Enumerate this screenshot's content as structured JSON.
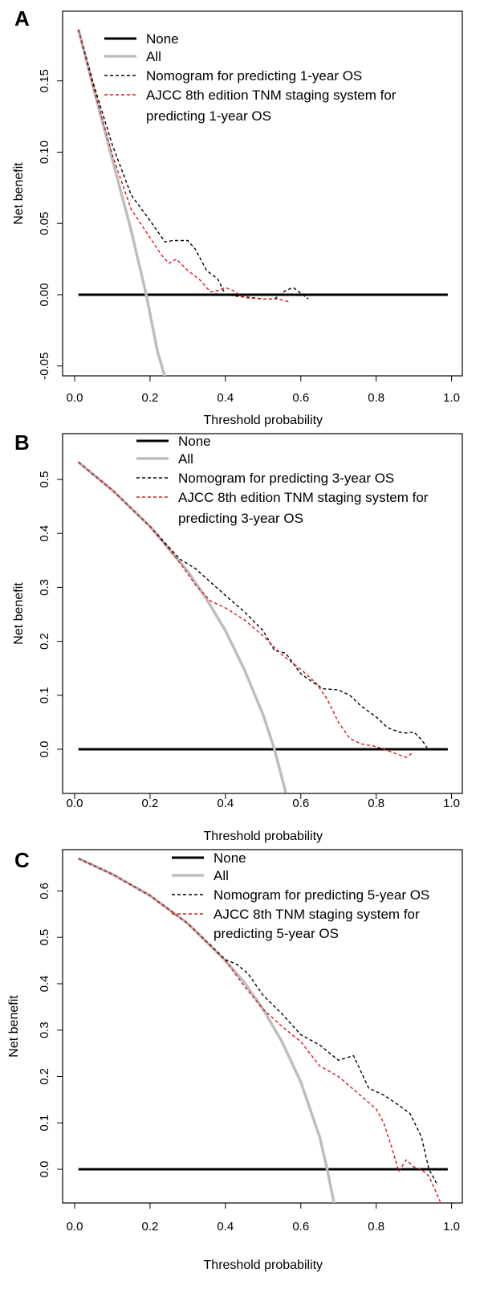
{
  "colors": {
    "none": "#000000",
    "all": "#bdbdbd",
    "nomogram": "#000000",
    "ajcc": "#d7191c"
  },
  "chart_data": [
    {
      "type": "line",
      "panel_label": "A",
      "xlabel": "Threshold probability",
      "ylabel": "Net benefit",
      "xlim": [
        0,
        1
      ],
      "ylim": [
        -0.06,
        0.19
      ],
      "xticks": [
        "0.0",
        "0.2",
        "0.4",
        "0.6",
        "0.8",
        "1.0"
      ],
      "yticks": [
        "-0.05",
        "0.00",
        "0.05",
        "0.10",
        "0.15"
      ],
      "legend_position": "top-right",
      "legend": {
        "none": "None",
        "all": "All",
        "nomogram": "Nomogram for predicting 1-year OS",
        "ajcc_line1": "AJCC 8th edition TNM staging system for",
        "ajcc_line2": "predicting 1-year OS"
      },
      "series": [
        {
          "name": "None",
          "x": [
            0.01,
            0.99
          ],
          "y": [
            0,
            0
          ]
        },
        {
          "name": "All",
          "x": [
            0.01,
            0.05,
            0.1,
            0.15,
            0.19,
            0.22,
            0.24
          ],
          "y": [
            0.186,
            0.145,
            0.095,
            0.045,
            0.0,
            -0.04,
            -0.058
          ]
        },
        {
          "name": "Nomogram for predicting 1-year OS",
          "x": [
            0.01,
            0.05,
            0.1,
            0.15,
            0.2,
            0.24,
            0.26,
            0.3,
            0.32,
            0.35,
            0.38,
            0.4,
            0.43,
            0.47,
            0.5,
            0.53,
            0.56,
            0.58,
            0.6,
            0.62
          ],
          "y": [
            0.186,
            0.148,
            0.105,
            0.07,
            0.052,
            0.037,
            0.038,
            0.038,
            0.032,
            0.017,
            0.011,
            0.0,
            -0.001,
            -0.002,
            -0.003,
            -0.003,
            0.003,
            0.005,
            0.001,
            -0.003
          ]
        },
        {
          "name": "AJCC 8th edition TNM staging system for predicting 1-year OS",
          "x": [
            0.01,
            0.05,
            0.1,
            0.15,
            0.2,
            0.23,
            0.25,
            0.27,
            0.3,
            0.33,
            0.36,
            0.38,
            0.4,
            0.42,
            0.45,
            0.5,
            0.54,
            0.57
          ],
          "y": [
            0.186,
            0.145,
            0.098,
            0.06,
            0.04,
            0.028,
            0.022,
            0.025,
            0.017,
            0.011,
            0.002,
            0.003,
            0.005,
            0.003,
            -0.002,
            -0.003,
            -0.003,
            -0.005
          ]
        }
      ]
    },
    {
      "type": "line",
      "panel_label": "B",
      "xlabel": "Threshold probability",
      "ylabel": "Net benefit",
      "xlim": [
        0,
        1
      ],
      "ylim": [
        -0.08,
        0.56
      ],
      "xticks": [
        "0.0",
        "0.2",
        "0.4",
        "0.6",
        "0.8",
        "1.0"
      ],
      "yticks": [
        "0.0",
        "0.1",
        "0.2",
        "0.3",
        "0.4",
        "0.5"
      ],
      "legend_position": "top-right",
      "legend": {
        "none": "None",
        "all": "All",
        "nomogram": "Nomogram for predicting 3-year OS",
        "ajcc_line1": "AJCC 8th edition TNM staging system for",
        "ajcc_line2": "predicting 3-year OS"
      },
      "series": [
        {
          "name": "None",
          "x": [
            0.01,
            0.99
          ],
          "y": [
            0,
            0
          ]
        },
        {
          "name": "All",
          "x": [
            0.01,
            0.1,
            0.2,
            0.3,
            0.35,
            0.4,
            0.45,
            0.5,
            0.53,
            0.56
          ],
          "y": [
            0.532,
            0.48,
            0.413,
            0.33,
            0.278,
            0.22,
            0.148,
            0.064,
            0.0,
            -0.08
          ]
        },
        {
          "name": "Nomogram for predicting 3-year OS",
          "x": [
            0.01,
            0.1,
            0.2,
            0.28,
            0.32,
            0.36,
            0.4,
            0.45,
            0.5,
            0.53,
            0.56,
            0.6,
            0.63,
            0.66,
            0.7,
            0.73,
            0.76,
            0.8,
            0.83,
            0.86,
            0.88,
            0.9,
            0.92,
            0.935
          ],
          "y": [
            0.532,
            0.48,
            0.413,
            0.352,
            0.335,
            0.31,
            0.285,
            0.255,
            0.22,
            0.183,
            0.178,
            0.14,
            0.125,
            0.112,
            0.11,
            0.1,
            0.08,
            0.06,
            0.04,
            0.032,
            0.03,
            0.032,
            0.018,
            0.003
          ]
        },
        {
          "name": "AJCC 8th edition TNM staging system for predicting 3-year OS",
          "x": [
            0.01,
            0.1,
            0.2,
            0.28,
            0.32,
            0.36,
            0.4,
            0.45,
            0.5,
            0.55,
            0.6,
            0.64,
            0.67,
            0.7,
            0.73,
            0.76,
            0.8,
            0.84,
            0.86,
            0.88,
            0.9
          ],
          "y": [
            0.532,
            0.48,
            0.413,
            0.345,
            0.305,
            0.275,
            0.262,
            0.24,
            0.21,
            0.175,
            0.148,
            0.123,
            0.093,
            0.05,
            0.02,
            0.01,
            0.005,
            -0.005,
            -0.01,
            -0.015,
            -0.005
          ]
        }
      ]
    },
    {
      "type": "line",
      "panel_label": "C",
      "xlabel": "Threshold probability",
      "ylabel": "Net benefit",
      "xlim": [
        0,
        1
      ],
      "ylim": [
        -0.08,
        0.7
      ],
      "xticks": [
        "0.0",
        "0.2",
        "0.4",
        "0.6",
        "0.8",
        "1.0"
      ],
      "yticks": [
        "0.0",
        "0.1",
        "0.2",
        "0.3",
        "0.4",
        "0.5",
        "0.6"
      ],
      "legend_position": "top-right",
      "legend": {
        "none": "None",
        "all": "All",
        "nomogram": "Nomogram for predicting 5-year OS",
        "ajcc_line1": "AJCC 8th TNM staging system for",
        "ajcc_line2": "predicting 5-year OS"
      },
      "series": [
        {
          "name": "None",
          "x": [
            0.01,
            0.99
          ],
          "y": [
            0,
            0
          ]
        },
        {
          "name": "All",
          "x": [
            0.01,
            0.1,
            0.2,
            0.3,
            0.4,
            0.45,
            0.5,
            0.55,
            0.6,
            0.65,
            0.67,
            0.69
          ],
          "y": [
            0.67,
            0.636,
            0.59,
            0.53,
            0.45,
            0.403,
            0.345,
            0.275,
            0.188,
            0.07,
            0.0,
            -0.08
          ]
        },
        {
          "name": "Nomogram for predicting 5-year OS",
          "x": [
            0.01,
            0.1,
            0.2,
            0.3,
            0.4,
            0.43,
            0.46,
            0.5,
            0.55,
            0.6,
            0.65,
            0.7,
            0.74,
            0.78,
            0.82,
            0.86,
            0.89,
            0.92,
            0.94,
            0.96
          ],
          "y": [
            0.67,
            0.636,
            0.59,
            0.53,
            0.452,
            0.442,
            0.422,
            0.375,
            0.335,
            0.29,
            0.268,
            0.235,
            0.245,
            0.175,
            0.16,
            0.138,
            0.12,
            0.07,
            0.0,
            -0.03
          ]
        },
        {
          "name": "AJCC 8th TNM staging system for predicting 5-year OS",
          "x": [
            0.01,
            0.1,
            0.2,
            0.3,
            0.4,
            0.45,
            0.5,
            0.55,
            0.6,
            0.65,
            0.7,
            0.75,
            0.8,
            0.82,
            0.84,
            0.86,
            0.88,
            0.9,
            0.92,
            0.94,
            0.97
          ],
          "y": [
            0.67,
            0.636,
            0.59,
            0.53,
            0.45,
            0.395,
            0.345,
            0.308,
            0.275,
            0.223,
            0.2,
            0.165,
            0.13,
            0.1,
            0.05,
            -0.005,
            0.02,
            0.005,
            0.0,
            -0.015,
            -0.07
          ]
        }
      ]
    }
  ]
}
